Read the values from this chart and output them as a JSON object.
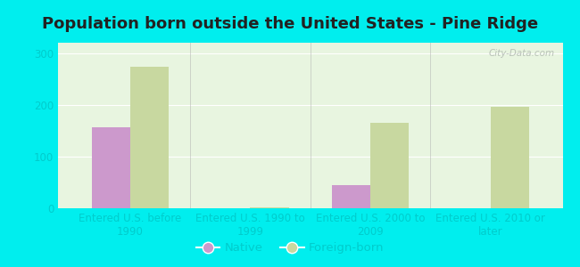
{
  "title": "Population born outside the United States - Pine Ridge",
  "categories": [
    "Entered U.S. before\n1990",
    "Entered U.S. 1990 to\n1999",
    "Entered U.S. 2000 to\n2009",
    "Entered U.S. 2010 or\nlater"
  ],
  "native_values": [
    157,
    0,
    45,
    0
  ],
  "foreign_values": [
    273,
    2,
    165,
    196
  ],
  "native_color": "#cc99cc",
  "foreign_color": "#c8d8a0",
  "ylim": [
    0,
    320
  ],
  "yticks": [
    0,
    100,
    200,
    300
  ],
  "background_color": "#00eeee",
  "plot_facecolor": "#e8f5e0",
  "watermark": "City-Data.com",
  "legend_native": "Native",
  "legend_foreign": "Foreign-born",
  "bar_width": 0.32,
  "title_fontsize": 13,
  "tick_fontsize": 8.5,
  "legend_fontsize": 9.5,
  "title_color": "#222222",
  "tick_color": "#00cccc",
  "separator_color": "#b0b0b0"
}
